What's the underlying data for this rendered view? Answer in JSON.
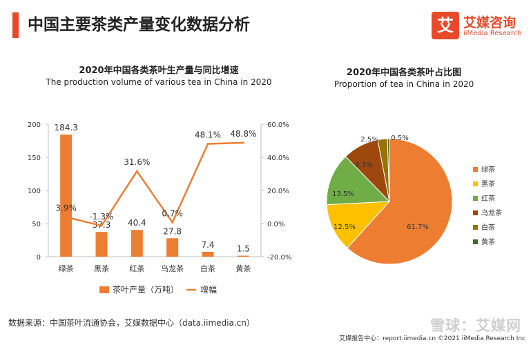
{
  "header": {
    "title": "中国主要茶类产量变化数据分析"
  },
  "logo": {
    "mark": "艾",
    "name_cn": "艾媒咨询",
    "name_en": "iiMedia Research"
  },
  "chart_data": [
    {
      "type": "bar",
      "title": "2020年中国各类茶叶生产量与同比增速",
      "subtitle": "The production volume of various tea in China in 2020",
      "categories": [
        "绿茶",
        "黑茶",
        "红茶",
        "乌龙茶",
        "白茶",
        "黄茶"
      ],
      "series": [
        {
          "name": "茶叶产量（万吨）",
          "type": "bar",
          "axis": "left",
          "values": [
            184.3,
            37.3,
            40.4,
            27.8,
            7.4,
            1.5
          ],
          "labels": [
            "184.3",
            "37.3",
            "40.4",
            "27.8",
            "7.4",
            "1.5"
          ]
        },
        {
          "name": "增幅",
          "type": "line",
          "axis": "right",
          "values": [
            3.9,
            -1.3,
            31.6,
            0.7,
            48.1,
            48.8
          ],
          "labels": [
            "3.9%",
            "-1.3%",
            "31.6%",
            "0.7%",
            "48.1%",
            "48.8%"
          ]
        }
      ],
      "ylim": [
        0,
        200
      ],
      "yticks": [
        0,
        50,
        100,
        150,
        200
      ],
      "y2lim": [
        -20,
        60
      ],
      "y2ticks": [
        "-20.0%",
        "0.0%",
        "20.0%",
        "40.0%",
        "60.0%"
      ],
      "legend": "bottom",
      "grid": false,
      "colors": {
        "bar": "#ed7d31",
        "line": "#ed7d31",
        "axis": "#bfbfbf"
      }
    },
    {
      "type": "pie",
      "title": "2020年中国各类茶叶占比图",
      "subtitle": "Proportion of tea in China in 2020",
      "slices": [
        {
          "name": "绿茶",
          "value": 61.7,
          "label": "61.7%",
          "color": "#ed7d31"
        },
        {
          "name": "黑茶",
          "value": 12.5,
          "label": "12.5%",
          "color": "#ffc000"
        },
        {
          "name": "红茶",
          "value": 13.5,
          "label": "13.5%",
          "color": "#70ad47"
        },
        {
          "name": "乌龙茶",
          "value": 9.3,
          "label": "9.3%",
          "color": "#9e480e"
        },
        {
          "name": "白茶",
          "value": 2.5,
          "label": "2.5%",
          "color": "#997300"
        },
        {
          "name": "黄茶",
          "value": 0.5,
          "label": "0.5%",
          "color": "#43682b"
        }
      ],
      "legend": "right"
    }
  ],
  "source": "数据来源：中国茶叶流通协会，艾媒数据中心（data.iimedia.cn）",
  "footer": "艾媒报告中心：report.iimedia.cn  ©2021  iiMedia Research  Inc",
  "watermark": "雪球：艾媒网"
}
